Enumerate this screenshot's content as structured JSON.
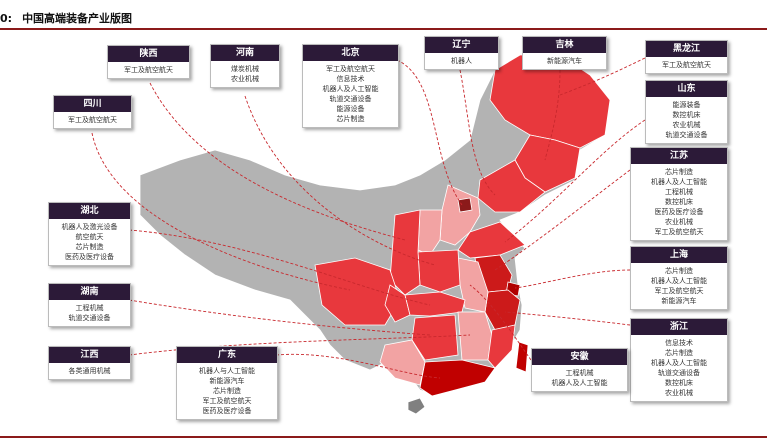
{
  "header": {
    "figure_label": "0:",
    "title": "中国高端装备产业版图"
  },
  "boxes": [
    {
      "name": "陕西",
      "items": [
        "军工及航空航天"
      ]
    },
    {
      "name": "河南",
      "items": [
        "煤炭机械",
        "农业机械"
      ]
    },
    {
      "name": "北京",
      "items": [
        "军工及航空航天",
        "信息技术",
        "机器人及人工智能",
        "轨道交通设备",
        "能源设备",
        "芯片制造"
      ]
    },
    {
      "name": "辽宁",
      "items": [
        "机器人"
      ]
    },
    {
      "name": "吉林",
      "items": [
        "新能源汽车"
      ]
    },
    {
      "name": "黑龙江",
      "items": [
        "军工及航空航天"
      ]
    },
    {
      "name": "山东",
      "items": [
        "能源装备",
        "数控机床",
        "农业机械",
        "轨道交通设备"
      ]
    },
    {
      "name": "江苏",
      "items": [
        "芯片制造",
        "机器人及人工智能",
        "工程机械",
        "数控机床",
        "医药及医疗设备",
        "农业机械",
        "军工及航空航天"
      ]
    },
    {
      "name": "上海",
      "items": [
        "芯片制造",
        "机器人及人工智能",
        "军工及航空航天",
        "新能源汽车"
      ]
    },
    {
      "name": "浙江",
      "items": [
        "信息技术",
        "芯片制造",
        "机器人及人工智能",
        "轨道交通设备",
        "数控机床",
        "农业机械"
      ]
    },
    {
      "name": "安徽",
      "items": [
        "工程机械",
        "机器人及人工智能"
      ]
    },
    {
      "name": "广东",
      "items": [
        "机器人与人工智能",
        "新能源汽车",
        "芯片制造",
        "军工及航空航天",
        "医药及医疗设备"
      ]
    },
    {
      "name": "江西",
      "items": [
        "各类通用机械"
      ]
    },
    {
      "name": "湖南",
      "items": [
        "工程机械",
        "轨道交通设备"
      ]
    },
    {
      "name": "湖北",
      "items": [
        "机器人及激光设备",
        "航空航天",
        "芯片制造",
        "医药及医疗设备"
      ]
    },
    {
      "name": "四川",
      "items": [
        "军工及航空航天"
      ]
    }
  ]
}
